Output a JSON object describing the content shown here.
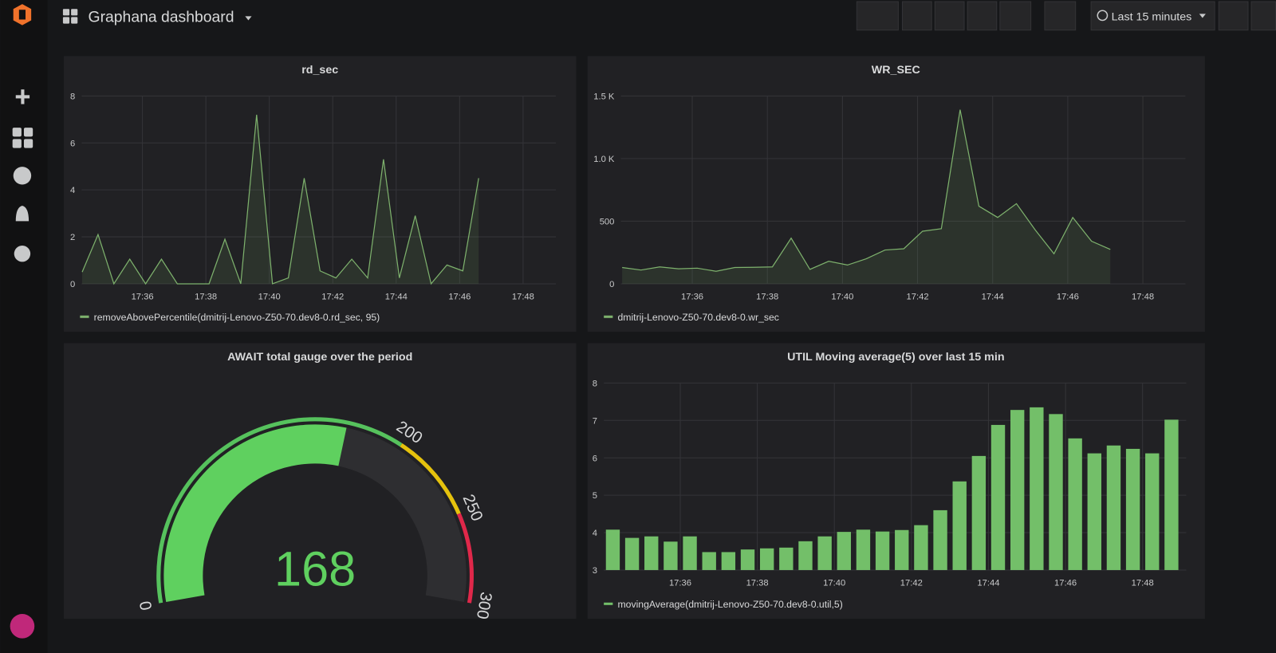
{
  "header": {
    "title": "Graphana dashboard",
    "time_range": "Last 15 minutes"
  },
  "chart_data": [
    {
      "type": "line",
      "title": "rd_sec",
      "x": [
        "17:34:06",
        "17:34:36",
        "17:35:06",
        "17:35:36",
        "17:36:06",
        "17:36:36",
        "17:37:06",
        "17:37:36",
        "17:38:06",
        "17:38:36",
        "17:39:06",
        "17:39:36",
        "17:40:06",
        "17:40:36",
        "17:41:06",
        "17:41:36",
        "17:42:06",
        "17:42:36",
        "17:43:06",
        "17:43:36",
        "17:44:06",
        "17:44:36",
        "17:45:06",
        "17:45:36",
        "17:46:06",
        "17:46:36"
      ],
      "series": [
        {
          "name": "removeAbovePercentile(dmitrij-Lenovo-Z50-70.dev8-0.rd_sec, 95)",
          "color": "#7eb26d",
          "values": [
            0.5,
            2.1,
            0,
            1.05,
            0,
            1.05,
            0,
            0,
            0,
            1.9,
            0,
            7.2,
            0,
            0.25,
            4.5,
            0.55,
            0.25,
            1.05,
            0.25,
            5.3,
            0.25,
            2.9,
            0,
            0.8,
            0.55,
            4.5
          ]
        }
      ],
      "xlim": [
        "17:34:05",
        "17:49:02"
      ],
      "xticks": [
        "17:36",
        "17:38",
        "17:40",
        "17:42",
        "17:44",
        "17:46",
        "17:48"
      ],
      "ylim": [
        0,
        8
      ],
      "yticks": [
        0,
        2,
        4,
        6,
        8
      ],
      "grid": true,
      "fill": true
    },
    {
      "type": "line",
      "title": "WR_SEC",
      "x": [
        "17:34:08",
        "17:34:38",
        "17:35:08",
        "17:35:38",
        "17:36:08",
        "17:36:38",
        "17:37:08",
        "17:37:38",
        "17:38:08",
        "17:38:38",
        "17:39:08",
        "17:39:38",
        "17:40:08",
        "17:40:38",
        "17:41:08",
        "17:41:38",
        "17:42:08",
        "17:42:38",
        "17:43:08",
        "17:43:38",
        "17:44:08",
        "17:44:38",
        "17:45:08",
        "17:45:38",
        "17:46:08",
        "17:46:38",
        "17:47:08"
      ],
      "series": [
        {
          "name": "dmitrij-Lenovo-Z50-70.dev8-0.wr_sec",
          "color": "#7eb26d",
          "values": [
            130,
            110,
            135,
            120,
            125,
            100,
            130,
            132,
            135,
            365,
            115,
            180,
            150,
            200,
            270,
            280,
            420,
            440,
            1390,
            620,
            530,
            640,
            430,
            240,
            530,
            340,
            275
          ]
        }
      ],
      "xlim": [
        "17:34:06",
        "17:49:08"
      ],
      "xticks": [
        "17:36",
        "17:38",
        "17:40",
        "17:42",
        "17:44",
        "17:46",
        "17:48"
      ],
      "ylim": [
        0,
        1500
      ],
      "yticks": [
        0,
        500,
        {
          "value": 1000,
          "label": "1.0 K"
        },
        {
          "value": 1500,
          "label": "1.5 K"
        }
      ],
      "grid": true,
      "fill": true
    },
    {
      "type": "gauge",
      "title": "AWAIT total gauge over the period",
      "value": 168,
      "ticks": [
        0,
        200,
        250,
        300
      ],
      "band_colors": [
        "#56c25d",
        "#e5c20d",
        "#e0284a"
      ],
      "value_color": "#5fd05f",
      "track_color": "#2e2e31"
    },
    {
      "type": "bar",
      "title": "UTIL Moving average(5) over last 15 min",
      "x": [
        "17:34:15",
        "17:34:45",
        "17:35:15",
        "17:35:45",
        "17:36:15",
        "17:36:45",
        "17:37:15",
        "17:37:45",
        "17:38:15",
        "17:38:45",
        "17:39:15",
        "17:39:45",
        "17:40:15",
        "17:40:45",
        "17:41:15",
        "17:41:45",
        "17:42:15",
        "17:42:45",
        "17:43:15",
        "17:43:45",
        "17:44:15",
        "17:44:45",
        "17:45:15",
        "17:45:45",
        "17:46:15",
        "17:46:45",
        "17:47:15",
        "17:47:45",
        "17:48:15",
        "17:48:45"
      ],
      "series": [
        {
          "name": "movingAverage(dmitrij-Lenovo-Z50-70.dev8-0.util,5)",
          "color": "#73bf69",
          "values": [
            4.08,
            3.86,
            3.9,
            3.76,
            3.9,
            3.48,
            3.48,
            3.55,
            3.58,
            3.6,
            3.77,
            3.9,
            4.02,
            4.08,
            4.03,
            4.07,
            4.2,
            4.6,
            5.37,
            6.05,
            6.88,
            7.28,
            7.35,
            7.17,
            6.52,
            6.12,
            6.33,
            6.24,
            6.12,
            7.02
          ]
        }
      ],
      "xlim": [
        "17:34:01",
        "17:49:08"
      ],
      "xticks": [
        "17:36",
        "17:38",
        "17:40",
        "17:42",
        "17:44",
        "17:46",
        "17:48"
      ],
      "ylim": [
        3,
        8
      ],
      "yticks": [
        3,
        4,
        5,
        6,
        7,
        8
      ],
      "grid": true
    }
  ]
}
